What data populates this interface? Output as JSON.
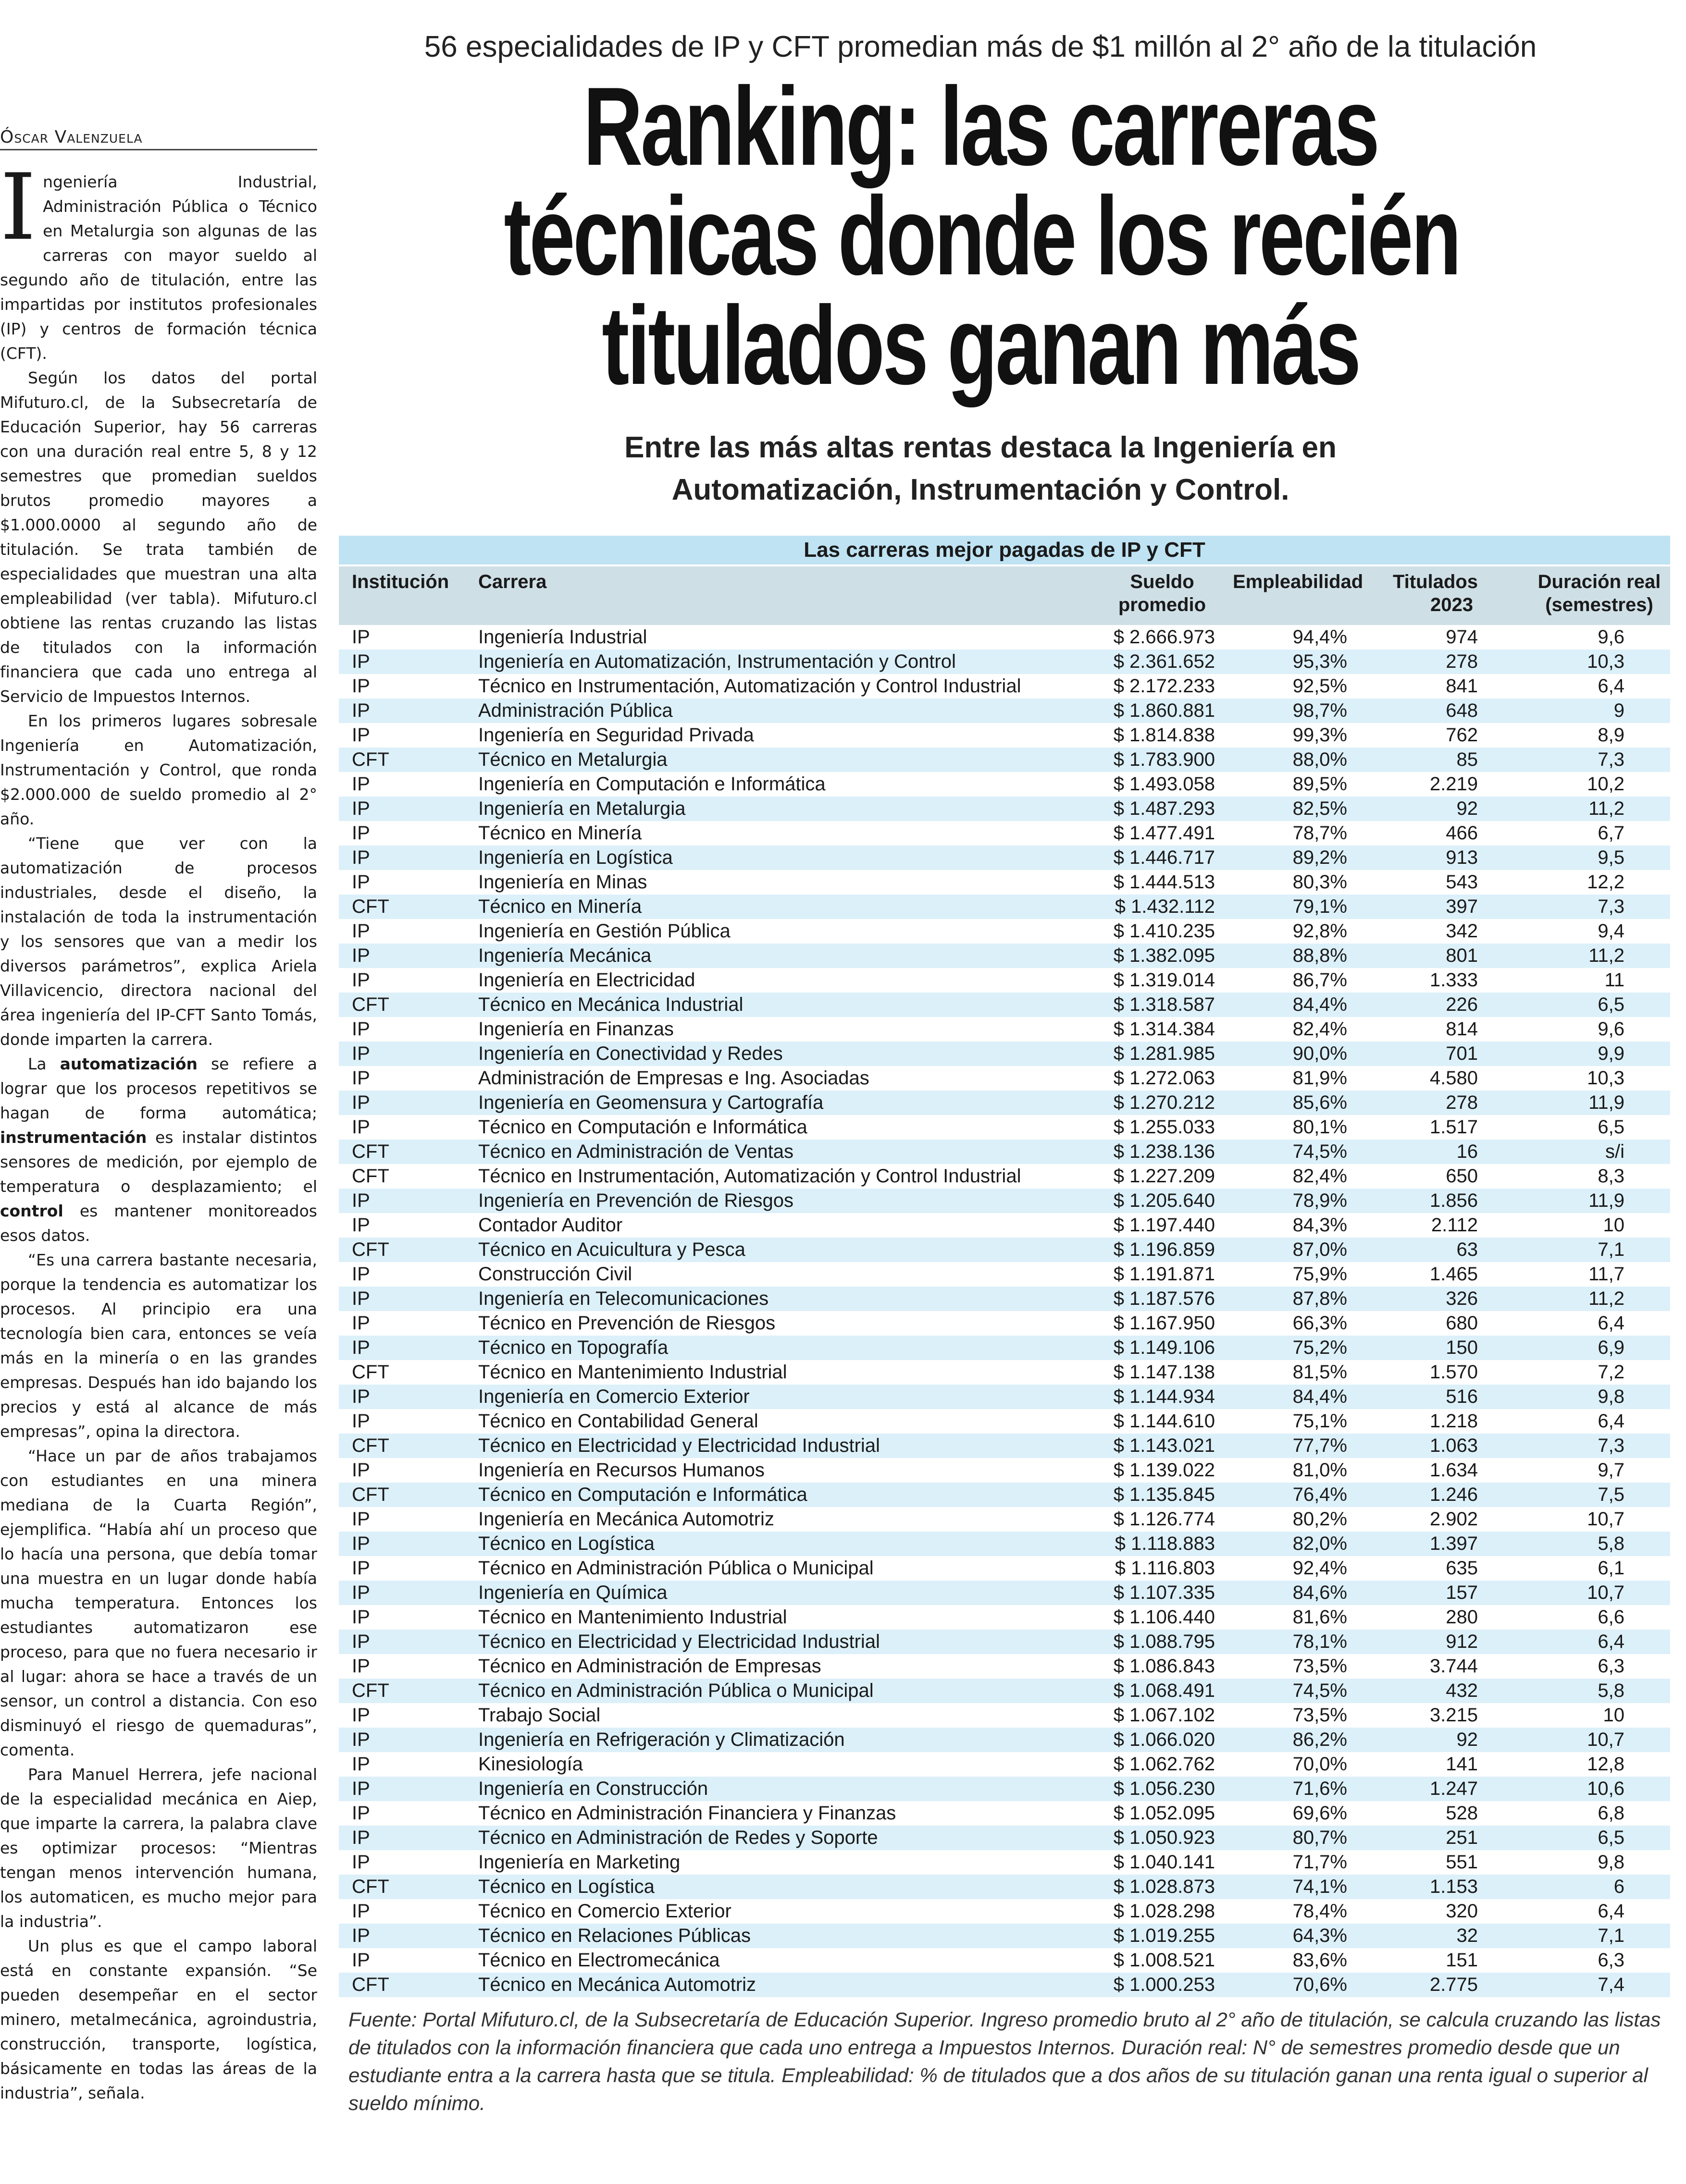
{
  "byline": "Óscar Valenzuela",
  "kicker": "56 especialidades de IP y CFT promedian más de $1 millón al 2° año de la titulación",
  "headline": [
    "Ranking: las carreras",
    "técnicas donde los recién",
    "titulados ganan más"
  ],
  "subhead": [
    "Entre las más altas rentas destaca la Ingeniería en",
    "Automatización, Instrumentación y Control."
  ],
  "article": {
    "dropcap": "I",
    "paragraphs": [
      [
        {
          "t": "ngeniería Industrial, Administración Pública o Técnico en Metalurgia son algunas de las carreras con mayor sueldo al segundo año de titulación, entre las impartidas por institutos profesionales (IP) y centros de formación técnica (CFT)."
        }
      ],
      [
        {
          "t": "Según los datos del portal Mifuturo.cl, de la Subsecretaría de Educación Superior, hay 56 carreras con una duración real entre 5, 8 y 12 semestres que promedian sueldos brutos promedio mayores a $1.000.0000 al segundo año de titulación. Se trata también de especialidades que muestran una alta empleabilidad (ver tabla). Mifuturo.cl obtiene las rentas cruzando las listas de titulados con la información financiera que cada uno entrega al Servicio de Impuestos Internos."
        }
      ],
      [
        {
          "t": "En los primeros lugares sobresale Ingeniería en Automatización, Instrumentación y Control, que ronda $2.000.000 de sueldo promedio al 2° año."
        }
      ],
      [
        {
          "t": "“Tiene que ver con la automatización de procesos industriales, desde el diseño, la instalación de toda la instrumentación y los sensores que van a medir los diversos parámetros”, explica Ariela Villavicencio, directora nacional del área ingeniería del IP-CFT Santo Tomás, donde imparten la carrera."
        }
      ],
      [
        {
          "t": "La "
        },
        {
          "t": "automatización",
          "b": true
        },
        {
          "t": " se refiere a lograr que los procesos repetitivos se hagan de forma automática; "
        },
        {
          "t": "instrumentación",
          "b": true
        },
        {
          "t": " es instalar distintos sensores de medición, por ejemplo de temperatura o desplazamiento; el "
        },
        {
          "t": "control",
          "b": true
        },
        {
          "t": " es mantener monitoreados esos datos."
        }
      ],
      [
        {
          "t": "“Es una carrera bastante necesaria, porque la tendencia es automatizar los procesos. Al principio era una tecnología bien cara, entonces se veía más en la minería o en las grandes empresas. Después han ido bajando los precios y está al alcance de más empresas”, opina la directora."
        }
      ],
      [
        {
          "t": "“Hace un par de años trabajamos con estudiantes en una minera mediana de la Cuarta Región”, ejemplifica. “Había ahí un proceso que lo hacía una persona, que debía tomar una muestra en un lugar donde había mucha temperatura. Entonces los estudiantes automatizaron ese proceso, para que no fuera necesario ir al lugar: ahora se hace a través de un sensor, un control a distancia. Con eso disminuyó el riesgo de quemaduras”, comenta."
        }
      ],
      [
        {
          "t": "Para Manuel Herrera, jefe nacional de la especialidad mecánica en Aiep, que imparte la carrera, la palabra clave es optimizar procesos: “Mientras tengan menos intervención humana, los automaticen, es mucho mejor para la industria”."
        }
      ],
      [
        {
          "t": "Un plus es que el campo laboral está en constante expansión. “Se pueden desempeñar en el sector minero, metalmecánica, agroindustria, construcción, transporte, logística, básicamente en todas las áreas de la industria”, señala."
        }
      ]
    ]
  },
  "table": {
    "title": "Las carreras mejor pagadas de IP y CFT",
    "headers": {
      "institucion": "Institución",
      "carrera": "Carrera",
      "sueldo": [
        "Sueldo",
        "promedio"
      ],
      "empleabilidad": "Empleabilidad",
      "titulados": [
        "Titulados",
        "2023"
      ],
      "duracion": [
        "Duración real",
        "(semestres)"
      ]
    },
    "colors": {
      "title_bg": "#bfe3f3",
      "header_bg": "#cfdfe6",
      "stripe": "#dcf0f9"
    },
    "rows": [
      [
        "IP",
        "Ingeniería Industrial",
        "$ 2.666.973",
        "94,4%",
        "974",
        "9,6"
      ],
      [
        "IP",
        "Ingeniería en Automatización, Instrumentación y Control",
        "$ 2.361.652",
        "95,3%",
        "278",
        "10,3"
      ],
      [
        "IP",
        "Técnico en Instrumentación, Automatización y Control Industrial",
        "$ 2.172.233",
        "92,5%",
        "841",
        "6,4"
      ],
      [
        "IP",
        "Administración Pública",
        "$ 1.860.881",
        "98,7%",
        "648",
        "9"
      ],
      [
        "IP",
        "Ingeniería en Seguridad Privada",
        "$ 1.814.838",
        "99,3%",
        "762",
        "8,9"
      ],
      [
        "CFT",
        "Técnico en Metalurgia",
        "$ 1.783.900",
        "88,0%",
        "85",
        "7,3"
      ],
      [
        "IP",
        "Ingeniería en Computación e Informática",
        "$ 1.493.058",
        "89,5%",
        "2.219",
        "10,2"
      ],
      [
        "IP",
        "Ingeniería en Metalurgia",
        "$ 1.487.293",
        "82,5%",
        "92",
        "11,2"
      ],
      [
        "IP",
        "Técnico en Minería",
        "$ 1.477.491",
        "78,7%",
        "466",
        "6,7"
      ],
      [
        "IP",
        "Ingeniería en Logística",
        "$ 1.446.717",
        "89,2%",
        "913",
        "9,5"
      ],
      [
        "IP",
        "Ingeniería en Minas",
        "$ 1.444.513",
        "80,3%",
        "543",
        "12,2"
      ],
      [
        "CFT",
        "Técnico en Minería",
        "$ 1.432.112",
        "79,1%",
        "397",
        "7,3"
      ],
      [
        "IP",
        "Ingeniería en Gestión Pública",
        "$ 1.410.235",
        "92,8%",
        "342",
        "9,4"
      ],
      [
        "IP",
        "Ingeniería Mecánica",
        "$ 1.382.095",
        "88,8%",
        "801",
        "11,2"
      ],
      [
        "IP",
        "Ingeniería en Electricidad",
        "$ 1.319.014",
        "86,7%",
        "1.333",
        "11"
      ],
      [
        "CFT",
        "Técnico en Mecánica Industrial",
        "$ 1.318.587",
        "84,4%",
        "226",
        "6,5"
      ],
      [
        "IP",
        "Ingeniería en Finanzas",
        "$ 1.314.384",
        "82,4%",
        "814",
        "9,6"
      ],
      [
        "IP",
        "Ingeniería en Conectividad y Redes",
        "$ 1.281.985",
        "90,0%",
        "701",
        "9,9"
      ],
      [
        "IP",
        "Administración de Empresas e Ing. Asociadas",
        "$ 1.272.063",
        "81,9%",
        "4.580",
        "10,3"
      ],
      [
        "IP",
        "Ingeniería en Geomensura y Cartografía",
        "$ 1.270.212",
        "85,6%",
        "278",
        "11,9"
      ],
      [
        "IP",
        "Técnico en Computación e Informática",
        "$ 1.255.033",
        "80,1%",
        "1.517",
        "6,5"
      ],
      [
        "CFT",
        "Técnico en Administración de Ventas",
        "$ 1.238.136",
        "74,5%",
        "16",
        "s/i"
      ],
      [
        "CFT",
        "Técnico en Instrumentación, Automatización y Control Industrial",
        "$ 1.227.209",
        "82,4%",
        "650",
        "8,3"
      ],
      [
        "IP",
        "Ingeniería en Prevención de Riesgos",
        "$ 1.205.640",
        "78,9%",
        "1.856",
        "11,9"
      ],
      [
        "IP",
        "Contador Auditor",
        "$ 1.197.440",
        "84,3%",
        "2.112",
        "10"
      ],
      [
        "CFT",
        "Técnico en Acuicultura y Pesca",
        "$ 1.196.859",
        "87,0%",
        "63",
        "7,1"
      ],
      [
        "IP",
        "Construcción Civil",
        "$ 1.191.871",
        "75,9%",
        "1.465",
        "11,7"
      ],
      [
        "IP",
        "Ingeniería en Telecomunicaciones",
        "$ 1.187.576",
        "87,8%",
        "326",
        "11,2"
      ],
      [
        "IP",
        "Técnico en Prevención de Riesgos",
        "$ 1.167.950",
        "66,3%",
        "680",
        "6,4"
      ],
      [
        "IP",
        "Técnico en Topografía",
        "$ 1.149.106",
        "75,2%",
        "150",
        "6,9"
      ],
      [
        "CFT",
        "Técnico en Mantenimiento Industrial",
        "$ 1.147.138",
        "81,5%",
        "1.570",
        "7,2"
      ],
      [
        "IP",
        "Ingeniería en Comercio Exterior",
        "$ 1.144.934",
        "84,4%",
        "516",
        "9,8"
      ],
      [
        "IP",
        "Técnico en Contabilidad General",
        "$ 1.144.610",
        "75,1%",
        "1.218",
        "6,4"
      ],
      [
        "CFT",
        "Técnico en Electricidad y Electricidad Industrial",
        "$ 1.143.021",
        "77,7%",
        "1.063",
        "7,3"
      ],
      [
        "IP",
        "Ingeniería en Recursos Humanos",
        "$ 1.139.022",
        "81,0%",
        "1.634",
        "9,7"
      ],
      [
        "CFT",
        "Técnico en Computación e Informática",
        "$ 1.135.845",
        "76,4%",
        "1.246",
        "7,5"
      ],
      [
        "IP",
        "Ingeniería en Mecánica Automotriz",
        "$ 1.126.774",
        "80,2%",
        "2.902",
        "10,7"
      ],
      [
        "IP",
        "Técnico en Logística",
        "$ 1.118.883",
        "82,0%",
        "1.397",
        "5,8"
      ],
      [
        "IP",
        "Técnico en Administración Pública o Municipal",
        "$ 1.116.803",
        "92,4%",
        "635",
        "6,1"
      ],
      [
        "IP",
        "Ingeniería en Química",
        "$ 1.107.335",
        "84,6%",
        "157",
        "10,7"
      ],
      [
        "IP",
        "Técnico en Mantenimiento Industrial",
        "$ 1.106.440",
        "81,6%",
        "280",
        "6,6"
      ],
      [
        "IP",
        "Técnico en Electricidad y Electricidad Industrial",
        "$ 1.088.795",
        "78,1%",
        "912",
        "6,4"
      ],
      [
        "IP",
        "Técnico en Administración de Empresas",
        "$ 1.086.843",
        "73,5%",
        "3.744",
        "6,3"
      ],
      [
        "CFT",
        "Técnico en Administración Pública o Municipal",
        "$ 1.068.491",
        "74,5%",
        "432",
        "5,8"
      ],
      [
        "IP",
        "Trabajo Social",
        "$ 1.067.102",
        "73,5%",
        "3.215",
        "10"
      ],
      [
        "IP",
        "Ingeniería en Refrigeración y Climatización",
        "$ 1.066.020",
        "86,2%",
        "92",
        "10,7"
      ],
      [
        "IP",
        "Kinesiología",
        "$ 1.062.762",
        "70,0%",
        "141",
        "12,8"
      ],
      [
        "IP",
        "Ingeniería en Construcción",
        "$ 1.056.230",
        "71,6%",
        "1.247",
        "10,6"
      ],
      [
        "IP",
        "Técnico en Administración Financiera y Finanzas",
        "$ 1.052.095",
        "69,6%",
        "528",
        "6,8"
      ],
      [
        "IP",
        "Técnico en Administración de Redes y Soporte",
        "$ 1.050.923",
        "80,7%",
        "251",
        "6,5"
      ],
      [
        "IP",
        "Ingeniería en Marketing",
        "$ 1.040.141",
        "71,7%",
        "551",
        "9,8"
      ],
      [
        "CFT",
        "Técnico en Logística",
        "$ 1.028.873",
        "74,1%",
        "1.153",
        "6"
      ],
      [
        "IP",
        "Técnico en Comercio Exterior",
        "$ 1.028.298",
        "78,4%",
        "320",
        "6,4"
      ],
      [
        "IP",
        "Técnico en Relaciones Públicas",
        "$ 1.019.255",
        "64,3%",
        "32",
        "7,1"
      ],
      [
        "IP",
        "Técnico en Electromecánica",
        "$ 1.008.521",
        "83,6%",
        "151",
        "6,3"
      ],
      [
        "CFT",
        "Técnico en Mecánica Automotriz",
        "$ 1.000.253",
        "70,6%",
        "2.775",
        "7,4"
      ]
    ],
    "note": "Fuente: Portal Mifuturo.cl, de la Subsecretaría de Educación Superior. Ingreso promedio bruto al 2° año de titulación, se calcula cruzando las listas de titulados con la información financiera que cada uno entrega a Impuestos Internos. Duración real: N° de semestres promedio desde que un estudiante entra a la carrera hasta que se titula. Empleabilidad: % de titulados que a dos años de su titulación ganan una renta igual o superior al sueldo mínimo."
  }
}
